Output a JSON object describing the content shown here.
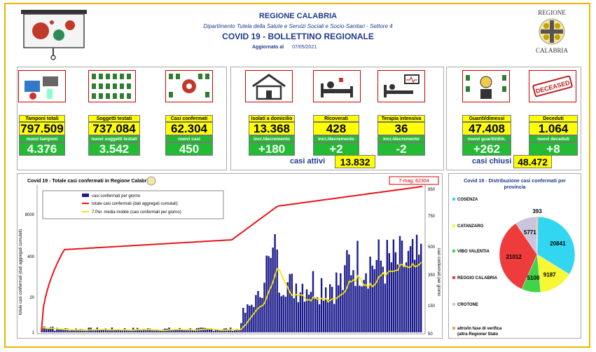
{
  "header": {
    "region": "REGIONE CALABRIA",
    "department": "Dipartimento Tutela della Salute e Servizi Sociali e Socio-Sanitari - Settore 4",
    "bulletin": "COVID 19 - BOLLETTINO REGIONALE",
    "updated_label": "Aggiornato al",
    "updated_date": "07/05/2021",
    "logo_top": "REGIONE",
    "logo_bottom": "CALABRIA"
  },
  "testing": [
    {
      "label": "Tamponi totali",
      "value": "797.509",
      "sub_label": "nuovi tamponi",
      "sub_value": "4.376"
    },
    {
      "label": "Soggetti testati",
      "value": "737.084",
      "sub_label": "nuovi soggetti testati",
      "sub_value": "3.542"
    },
    {
      "label": "Casi confermati",
      "value": "62.304",
      "sub_label": "nuovi casi",
      "sub_value": "450"
    }
  ],
  "active": [
    {
      "label": "Isolati a domicilio",
      "value": "13.368",
      "sub_label": "incr./decremento",
      "sub_value": "+180"
    },
    {
      "label": "Ricoverati",
      "value": "428",
      "sub_label": "incr./decremento",
      "sub_value": "+2"
    },
    {
      "label": "Terapia intensiva",
      "value": "36",
      "sub_label": "incr./decremento",
      "sub_value": "-2"
    }
  ],
  "active_total": {
    "label": "casi attivi",
    "value": "13.832"
  },
  "closed": [
    {
      "label": "Guariti/dimessi",
      "value": "47.408",
      "sub_label": "nuovi guariti/dim.",
      "sub_value": "+262"
    },
    {
      "label": "Deceduti",
      "value": "1.064",
      "sub_label": "nuovi deceduti",
      "sub_value": "+8"
    }
  ],
  "closed_total": {
    "label": "casi chiusi",
    "value": "48.472"
  },
  "chart_data": [
    {
      "type": "line",
      "title": "Covid 19 - Totale casi confermati in Regione Calabria",
      "callout": "7-mag; 62304",
      "legend": [
        "casi confermati per giorno",
        "totale casi confermati (dati aggregati cumulati)",
        "7 Per. media mobile (casi confermati per giorno)"
      ],
      "legend_position": "top-left",
      "left_axis_ticks": [
        "8000",
        "400",
        "20",
        "1"
      ],
      "right_axis_ticks": [
        "950",
        "750",
        "500",
        "350",
        "150",
        "50"
      ],
      "left_axis_label": "totale casi confermati (dati aggregati cumulati)",
      "right_axis_label": "casi confermati per giorno",
      "series": [
        {
          "name": "totale casi confermati (dati aggregati cumulati)",
          "color": "#e8141b",
          "style": "line"
        },
        {
          "name": "casi confermati per giorno",
          "color": "#1a1a8c",
          "style": "bar"
        },
        {
          "name": "7 Per. media mobile (casi confermati per giorno)",
          "color": "#f5e60a",
          "style": "line"
        }
      ]
    },
    {
      "type": "pie",
      "title": "Covid 19 - Distribuzione casi confermati per provincia",
      "slices": [
        {
          "name": "COSENZA",
          "value": 20841,
          "color": "#33d6f0"
        },
        {
          "name": "CATANZARO",
          "value": 9187,
          "color": "#f7f733"
        },
        {
          "name": "VIBO VALENTIA",
          "value": 5100,
          "color": "#3fd44a"
        },
        {
          "name": "REGGIO CALABRIA",
          "value": 21012,
          "color": "#ee3b3b"
        },
        {
          "name": "CROTONE",
          "value": 5771,
          "color": "#c9c5dd"
        },
        {
          "name": "altro/in fase di verifica (altra Regione/ Stato Estero o sbarchi)",
          "value": 393,
          "color": "#f0a060"
        }
      ]
    }
  ]
}
